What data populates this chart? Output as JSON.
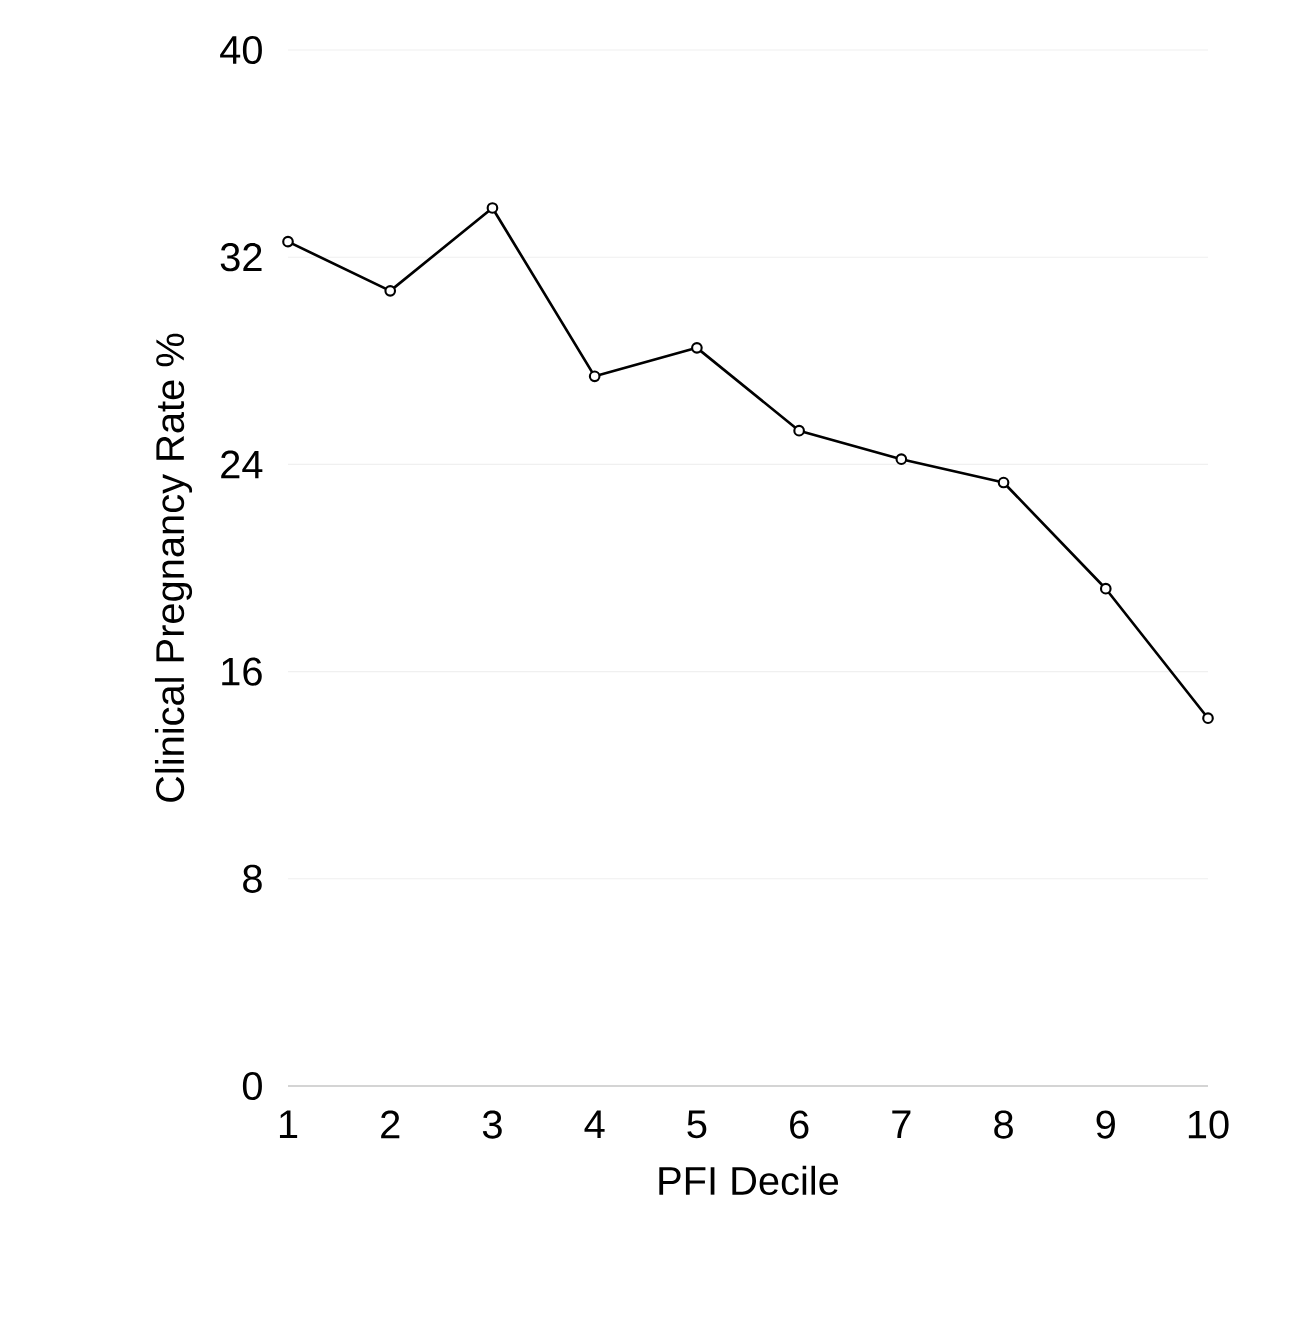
{
  "chart_data": {
    "type": "line",
    "xlabel": "PFI Decile",
    "ylabel": "Clinical Pregnancy Rate %",
    "x": [
      1,
      2,
      3,
      4,
      5,
      6,
      7,
      8,
      9,
      10
    ],
    "series": [
      {
        "color": "#000000",
        "values": [
          32.6,
          30.7,
          33.9,
          27.4,
          28.5,
          25.3,
          24.2,
          23.3,
          19.2,
          14.2
        ]
      }
    ],
    "xlim": [
      1,
      10
    ],
    "ylim": [
      0,
      40
    ],
    "xticks": [
      1,
      2,
      3,
      4,
      5,
      6,
      7,
      8,
      9,
      10
    ],
    "yticks": [
      0,
      8,
      16,
      24,
      32,
      40
    ],
    "grid": "y",
    "marker": "circle",
    "line_style": "solid"
  }
}
